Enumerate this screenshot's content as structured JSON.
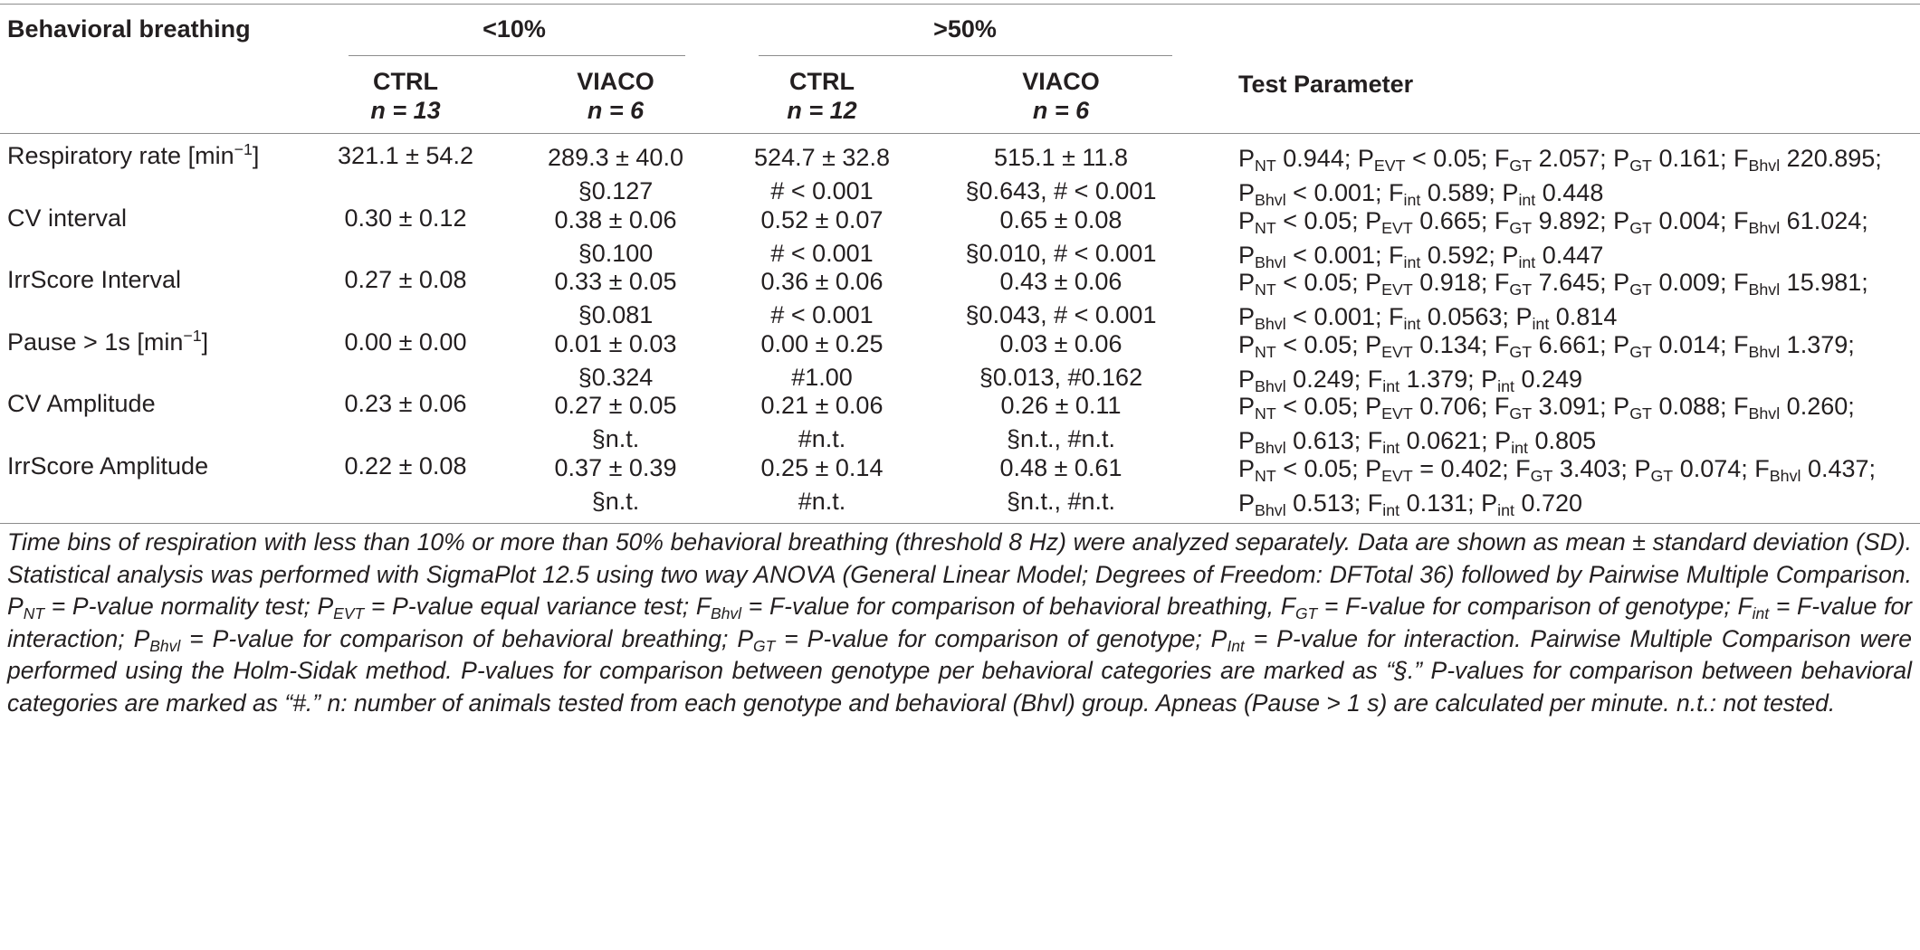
{
  "header": {
    "row_label": "Behavioral breathing",
    "group_low": "<10%",
    "group_high": ">50%",
    "col_ctrl": "CTRL",
    "col_viaco": "VIACO",
    "n_low_ctrl": "n = 13",
    "n_low_viaco": "n = 6",
    "n_high_ctrl": "n = 12",
    "n_high_viaco": "n = 6",
    "test_parameter": "Test Parameter"
  },
  "rows": [
    {
      "label_main": "Respiratory rate [min",
      "label_sup": "−1",
      "label_tail": "]",
      "low_ctrl": "321.1 ± 54.2",
      "low_viaco": "289.3 ± 40.0",
      "low_viaco_p": "§0.127",
      "high_ctrl": "524.7 ± 32.8",
      "high_ctrl_p": "# < 0.001",
      "high_viaco": "515.1 ± 11.8",
      "high_viaco_p": "§0.643, # < 0.001",
      "tp": {
        "nt": " 0.944; ",
        "evt": " < 0.05; ",
        "fgt": " 2.057; ",
        "pgt": " 0.161; ",
        "fb": " 220.895; ",
        "pb": " < 0.001; ",
        "fi": " 0.589; ",
        "pi": " 0.448"
      }
    },
    {
      "label_main": "CV interval",
      "low_ctrl": "0.30 ± 0.12",
      "low_viaco": "0.38 ± 0.06",
      "low_viaco_p": "§0.100",
      "high_ctrl": "0.52 ± 0.07",
      "high_ctrl_p": "# < 0.001",
      "high_viaco": "0.65 ± 0.08",
      "high_viaco_p": "§0.010, # < 0.001",
      "tp": {
        "nt": " < 0.05; ",
        "evt": " 0.665; ",
        "fgt": " 9.892; ",
        "pgt": " 0.004; ",
        "fb": " 61.024; ",
        "pb": " < 0.001; ",
        "fi": " 0.592; ",
        "pi": " 0.447"
      }
    },
    {
      "label_main": "IrrScore Interval",
      "low_ctrl": "0.27 ± 0.08",
      "low_viaco": "0.33 ± 0.05",
      "low_viaco_p": "§0.081",
      "high_ctrl": "0.36 ± 0.06",
      "high_ctrl_p": "# < 0.001",
      "high_viaco": "0.43 ± 0.06",
      "high_viaco_p": "§0.043, # < 0.001",
      "tp": {
        "nt": " < 0.05; ",
        "evt": " 0.918; ",
        "fgt": " 7.645; ",
        "pgt": " 0.009; ",
        "fb": " 15.981; ",
        "pb": " < 0.001; ",
        "fi": " 0.0563; ",
        "pi": " 0.814"
      }
    },
    {
      "label_main": "Pause > 1s [min",
      "label_sup": "−1",
      "label_tail": "]",
      "low_ctrl": "0.00 ± 0.00",
      "low_viaco": "0.01 ± 0.03",
      "low_viaco_p": "§0.324",
      "high_ctrl": "0.00 ± 0.25",
      "high_ctrl_p": "#1.00",
      "high_viaco": "0.03 ± 0.06",
      "high_viaco_p": "§0.013, #0.162",
      "tp": {
        "nt": " < 0.05; ",
        "evt": " 0.134; ",
        "fgt": " 6.661; ",
        "pgt": " 0.014; ",
        "fb": " 1.379; ",
        "pb": " 0.249; ",
        "fi": " 1.379; ",
        "pi": " 0.249"
      }
    },
    {
      "label_main": "CV Amplitude",
      "low_ctrl": "0.23 ± 0.06",
      "low_viaco": "0.27 ± 0.05",
      "low_viaco_p": "§n.t.",
      "high_ctrl": "0.21 ± 0.06",
      "high_ctrl_p": "#n.t.",
      "high_viaco": "0.26 ± 0.11",
      "high_viaco_p": "§n.t., #n.t.",
      "tp": {
        "nt": " < 0.05; ",
        "evt": " 0.706; ",
        "fgt": " 3.091; ",
        "pgt": " 0.088; ",
        "fb": " 0.260; ",
        "pb": " 0.613; ",
        "fi": " 0.0621; ",
        "pi": " 0.805"
      }
    },
    {
      "label_main": "IrrScore Amplitude",
      "low_ctrl": "0.22 ± 0.08",
      "low_viaco": "0.37 ± 0.39",
      "low_viaco_p": "§n.t.",
      "high_ctrl": "0.25 ± 0.14",
      "high_ctrl_p": "#n.t.",
      "high_viaco": "0.48 ± 0.61",
      "high_viaco_p": "§n.t., #n.t.",
      "tp": {
        "nt": " < 0.05; ",
        "evt": " = 0.402; ",
        "fgt": " 3.403; ",
        "pgt": " 0.074; ",
        "fb": " 0.437; ",
        "pb": " 0.513; ",
        "fi": " 0.131; ",
        "pi": " 0.720"
      }
    }
  ],
  "symbols": {
    "P": "P",
    "F": "F",
    "sub_nt": "NT",
    "sub_evt": "EVT",
    "sub_gt": "GT",
    "sub_bhvl": "Bhvl",
    "sub_int": "int",
    "sub_Int": "Int"
  },
  "footnote": {
    "s1": "Time bins of respiration with less than 10% or more than 50% behavioral breathing (threshold 8 Hz) were analyzed separately. Data are shown as mean ± standard deviation (SD). Statistical analysis was performed with SigmaPlot 12.5 using two way ANOVA (General Linear Model; Degrees of Freedom: DFTotal 36) followed by Pairwise Multiple Comparison. ",
    "d_nt": " = P-value normality test; ",
    "d_evt": " = P-value equal variance test; ",
    "d_fbhvl": " = F-value for comparison of behavioral breathing, ",
    "d_fgt": " = F-value for comparison of genotype; ",
    "d_fint": " = F-value for interaction; ",
    "d_pbhvl": " = P-value for comparison of behavioral breathing; ",
    "d_pgt": " = P-value for comparison of genotype; ",
    "d_pint": " = P-value for interaction. ",
    "s2": "Pairwise Multiple Comparison were performed using the Holm-Sidak method. P-values for comparison between genotype per behavioral categories are marked as “§.” P-values for comparison between behavioral categories are marked as “#.” n: number of animals tested from each genotype and behavioral (Bhvl) group. Apneas (Pause > 1 s) are calculated per minute. n.t.: not tested."
  }
}
